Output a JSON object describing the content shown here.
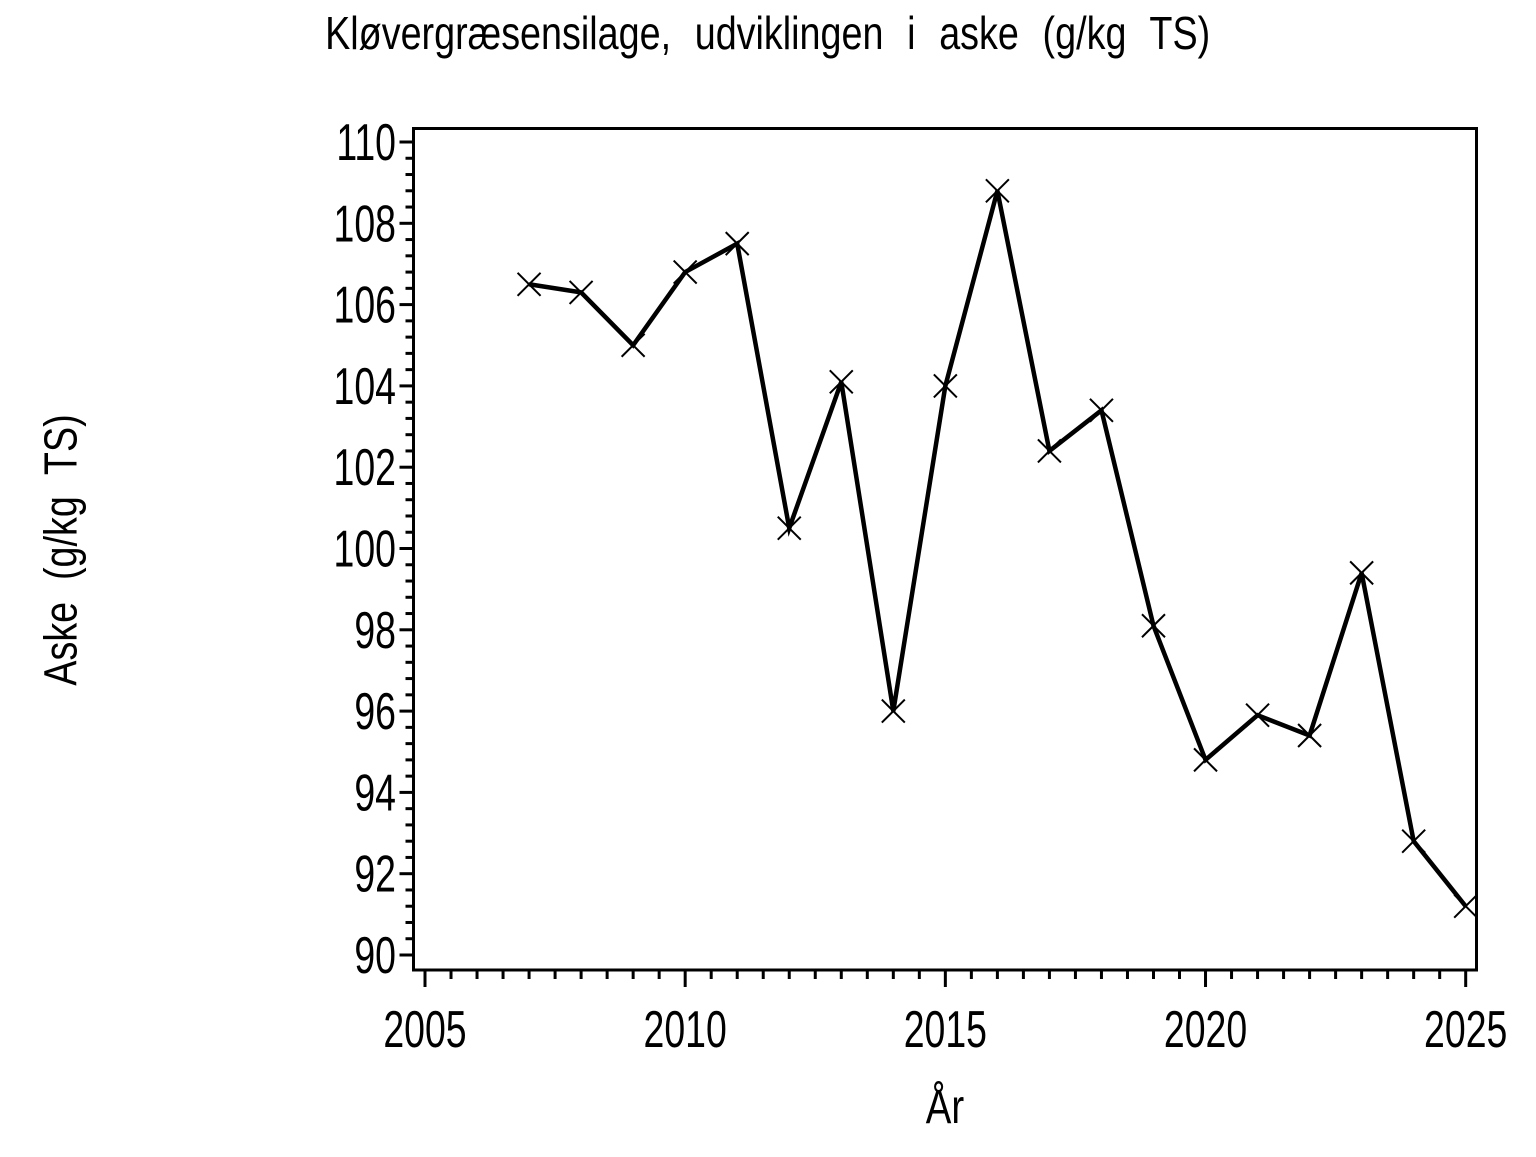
{
  "chart_data": {
    "type": "line",
    "title": "Kløvergræsensilage, udviklingen i aske (g/kg TS)",
    "xlabel": "År",
    "ylabel": "Aske (g/kg TS)",
    "x": [
      2007,
      2008,
      2009,
      2010,
      2011,
      2012,
      2013,
      2014,
      2015,
      2016,
      2017,
      2018,
      2019,
      2020,
      2021,
      2022,
      2023,
      2024,
      2025
    ],
    "series": [
      {
        "name": "Aske (g/kg TS)",
        "marker": "x",
        "color": "#000000",
        "values": [
          106.5,
          106.3,
          105.0,
          106.8,
          107.5,
          100.5,
          104.1,
          96.0,
          104.0,
          108.8,
          102.4,
          103.4,
          98.1,
          94.8,
          95.9,
          95.4,
          99.4,
          92.8,
          91.2
        ]
      }
    ],
    "xticks": [
      2005,
      2010,
      2015,
      2020,
      2025
    ],
    "yticks": [
      90,
      92,
      94,
      96,
      98,
      100,
      102,
      104,
      106,
      108,
      110
    ],
    "x_minor_step": 0.5,
    "y_minor_step": 0.4,
    "xlim": [
      2005,
      2025
    ],
    "ylim": [
      90,
      110
    ],
    "grid": false,
    "legend": null,
    "line_color": "#000000",
    "background_color": "#ffffff"
  }
}
